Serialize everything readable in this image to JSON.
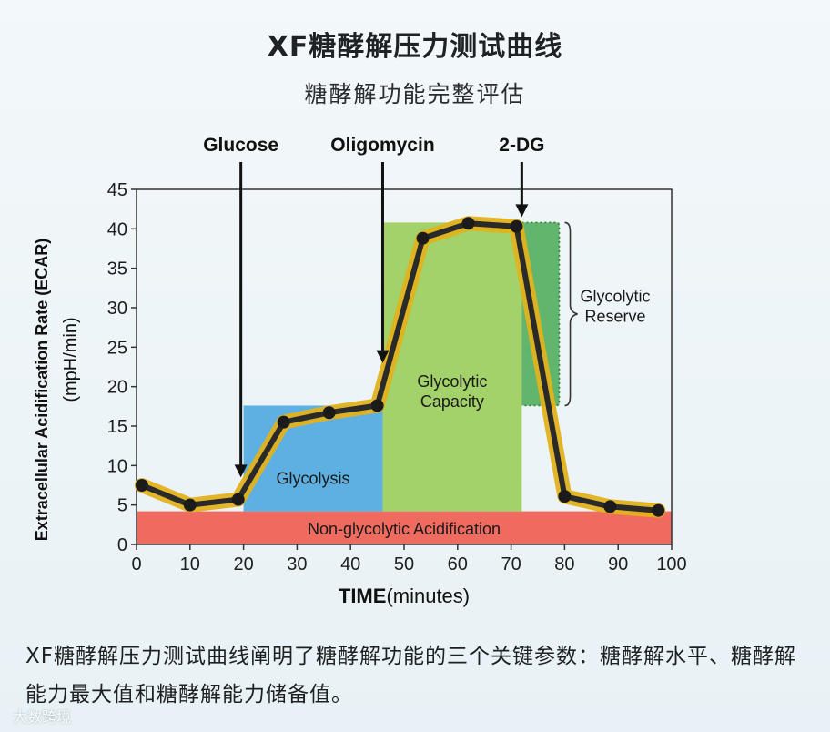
{
  "header": {
    "title": "XF糖酵解压力测试曲线",
    "subtitle": "糖酵解功能完整评估"
  },
  "chart_data": {
    "type": "line",
    "xlabel_bold": "TIME",
    "xlabel_rest": "(minutes)",
    "ylabel_line1": "Extracellular Acidification Rate (ECAR)",
    "ylabel_line2": "(mpH/min)",
    "xlim": [
      0,
      100
    ],
    "ylim": [
      0,
      45
    ],
    "xticks": [
      0,
      10,
      20,
      30,
      40,
      50,
      60,
      70,
      80,
      90,
      100
    ],
    "yticks": [
      0,
      5,
      10,
      15,
      20,
      25,
      30,
      35,
      40,
      45
    ],
    "series": [
      {
        "x": [
          1,
          10,
          19,
          27.5,
          36,
          45,
          53.5,
          62,
          71,
          80,
          88.5,
          97.5
        ],
        "y": [
          7.5,
          5,
          5.7,
          15.5,
          16.7,
          17.6,
          38.8,
          40.7,
          40.3,
          6.1,
          4.8,
          4.3
        ]
      }
    ],
    "injections": [
      {
        "label": "Glucose",
        "x": 19.5,
        "y_tip": 8.5
      },
      {
        "label": "Oligomycin",
        "x": 46,
        "y_tip": 23
      },
      {
        "label": "2-DG",
        "x": 72,
        "y_tip": 41.5
      }
    ],
    "regions": [
      {
        "label": "Non-glycolytic Acidification",
        "x0": 0,
        "x1": 100,
        "y0": 0,
        "y1": 4.2,
        "color": "#ef6a5f"
      },
      {
        "label": "Glycolysis",
        "x0": 20,
        "x1": 46,
        "y0": 4.2,
        "y1": 17.6,
        "color": "#5fb0e2"
      },
      {
        "label": "Glycolytic\nCapacity",
        "x0": 46,
        "x1": 72,
        "y0": 4.2,
        "y1": 40.8,
        "color": "#a3d16a"
      },
      {
        "label": "Glycolytic\nReserve",
        "x0": 72,
        "x1": 79,
        "y0": 17.6,
        "y1": 40.8,
        "color": "#62b56c"
      }
    ],
    "colors": {
      "line": "#2a2a2a",
      "band": "#e2b21c",
      "marker": "#1b1b1b"
    }
  },
  "caption": "XF糖酵解压力测试曲线阐明了糖酵解功能的三个关键参数：糖酵解水平、糖酵解能力最大值和糖酵解能力储备值。",
  "watermark": "大数跨境"
}
